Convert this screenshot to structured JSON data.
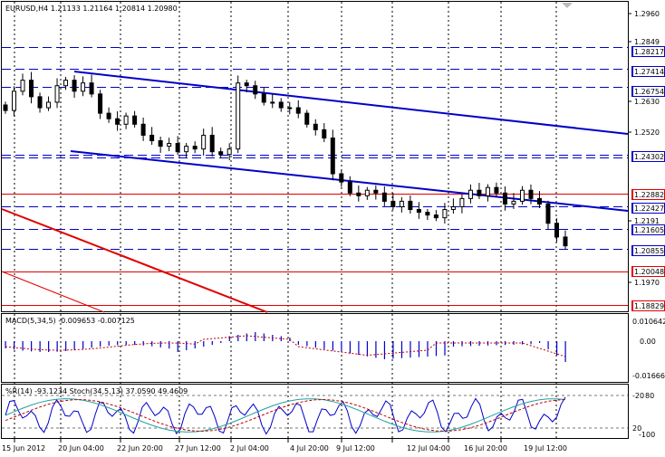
{
  "header": {
    "symbol_info": "EURUSD,H4  1.21133 1.21164 1.20814 1.20980"
  },
  "macd_panel": {
    "label": "MACD(5,34,5) -0.009653 -0.007125",
    "scale_top": "0.010642",
    "scale_mid": "0.00",
    "scale_bottom": "-0.016663"
  },
  "oscillator_panel": {
    "label": "%R(14) -93.1234  Stoch(34,5,13) 37.0590 49.4609",
    "level_top": "-20",
    "level_top_alt": "80",
    "level_bottom": "20",
    "level_bottom_alt": "-100"
  },
  "price_axis": {
    "ticks": [
      "1.2960",
      "1.2849",
      "1.2630",
      "1.2520",
      "1.2191",
      "1.1970"
    ],
    "level_labels": [
      {
        "text": "1.28217",
        "kind": "blue"
      },
      {
        "text": "1.27414",
        "kind": "blue"
      },
      {
        "text": "1.26754",
        "kind": "blue"
      },
      {
        "text": "1.24302",
        "kind": "blue"
      },
      {
        "text": "1.22882",
        "kind": "red"
      },
      {
        "text": "1.22427",
        "kind": "blue"
      },
      {
        "text": "1.21605",
        "kind": "blue"
      },
      {
        "text": "1.20855",
        "kind": "blue"
      },
      {
        "text": "1.20048",
        "kind": "red"
      },
      {
        "text": "1.18829",
        "kind": "red"
      }
    ]
  },
  "time_axis": {
    "labels": [
      "15 Jun 2012",
      "20 Jun 04:00",
      "22 Jun 20:00",
      "27 Jun 12:00",
      "2 Jul 04:00",
      "4 Jul 20:00",
      "9 Jul 12:00",
      "12 Jul 04:00",
      "16 Jul 20:00",
      "19 Jul 12:00"
    ]
  },
  "colors": {
    "blue_line": "#0000c8",
    "red_line": "#e00000",
    "label_bg_blue": "#0000c8",
    "label_bg_red": "#e00000",
    "macd_hist": "#0000c8",
    "macd_signal": "#c00000",
    "stoch_main": "#20a0a0",
    "stoch_signal": "#c00000",
    "wpr": "#0000c8"
  },
  "chart_data": {
    "type": "candlestick",
    "price_range": [
      1.186,
      1.2985
    ],
    "horizontal_levels": [
      1.28217,
      1.27414,
      1.26754,
      1.24302,
      1.2418,
      1.22882,
      1.22427,
      1.21605,
      1.20855,
      1.20048,
      1.18829
    ],
    "trend_lines": [
      {
        "color": "blue",
        "from": [
          0,
          1.2745
        ],
        "to": [
          1,
          1.2475
        ]
      },
      {
        "color": "blue",
        "from": [
          0,
          1.2465
        ],
        "to": [
          1,
          1.2255
        ]
      },
      {
        "color": "red",
        "from": [
          0,
          1.225
        ],
        "to": [
          1,
          1.186
        ]
      },
      {
        "color": "red",
        "from": [
          0,
          1.204
        ],
        "to": [
          1,
          1.188
        ]
      }
    ],
    "closes": [
      1.259,
      1.266,
      1.27,
      1.264,
      1.26,
      1.262,
      1.268,
      1.27,
      1.266,
      1.269,
      1.265,
      1.258,
      1.256,
      1.254,
      1.257,
      1.254,
      1.25,
      1.248,
      1.246,
      1.247,
      1.244,
      1.246,
      1.245,
      1.25,
      1.244,
      1.243,
      1.245,
      1.269,
      1.268,
      1.265,
      1.262,
      1.262,
      1.26,
      1.26,
      1.258,
      1.254,
      1.252,
      1.249,
      1.236,
      1.233,
      1.229,
      1.228,
      1.23,
      1.229,
      1.226,
      1.224,
      1.226,
      1.223,
      1.222,
      1.221,
      1.22,
      1.223,
      1.224,
      1.227,
      1.23,
      1.228,
      1.231,
      1.229,
      1.225,
      1.226,
      1.23,
      1.227,
      1.225,
      1.218,
      1.213,
      1.2098
    ]
  }
}
